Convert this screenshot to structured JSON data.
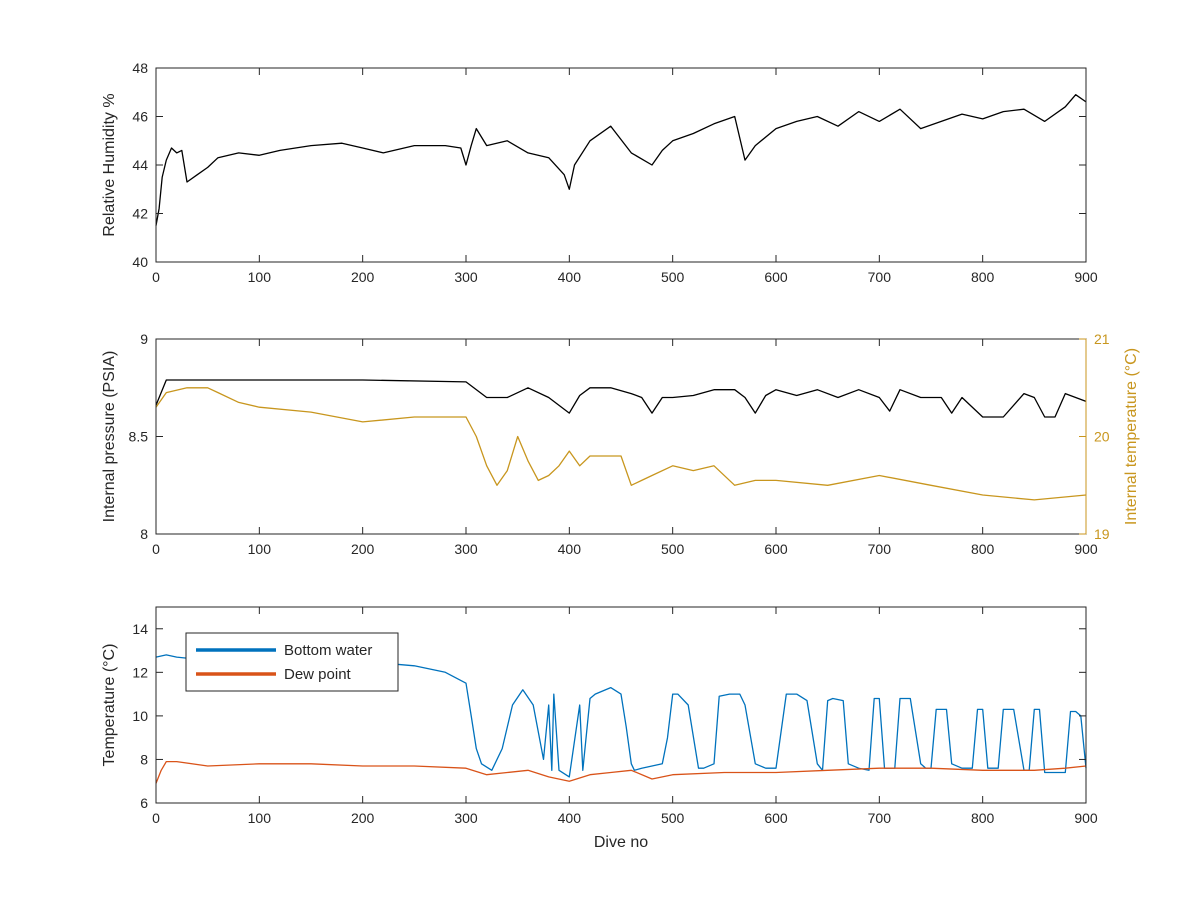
{
  "chart_data": [
    {
      "type": "line",
      "xlabel": "",
      "ylabel": "Relative Humidity %",
      "xlim": [
        0,
        900
      ],
      "ylim": [
        40,
        48
      ],
      "xticks": [
        "0",
        "100",
        "200",
        "300",
        "400",
        "500",
        "600",
        "700",
        "800",
        "900"
      ],
      "yticks": [
        "40",
        "42",
        "44",
        "46",
        "48"
      ],
      "color": "#000000",
      "series": [
        {
          "x": [
            0,
            3,
            6,
            10,
            15,
            20,
            25,
            30,
            40,
            50,
            60,
            80,
            100,
            120,
            150,
            180,
            200,
            220,
            250,
            280,
            295,
            300,
            305,
            310,
            320,
            340,
            360,
            380,
            395,
            400,
            405,
            420,
            440,
            460,
            480,
            490,
            500,
            520,
            540,
            560,
            570,
            580,
            600,
            620,
            640,
            660,
            680,
            700,
            720,
            740,
            760,
            780,
            800,
            820,
            840,
            860,
            880,
            890,
            900
          ],
          "values": [
            41.5,
            42.2,
            43.5,
            44.2,
            44.7,
            44.5,
            44.6,
            43.3,
            43.6,
            43.9,
            44.3,
            44.5,
            44.4,
            44.6,
            44.8,
            44.9,
            44.7,
            44.5,
            44.8,
            44.8,
            44.7,
            44.0,
            44.8,
            45.5,
            44.8,
            45.0,
            44.5,
            44.3,
            43.6,
            43.0,
            44.0,
            45.0,
            45.6,
            44.5,
            44.0,
            44.6,
            45.0,
            45.3,
            45.7,
            46.0,
            44.2,
            44.8,
            45.5,
            45.8,
            46.0,
            45.6,
            46.2,
            45.8,
            46.3,
            45.5,
            45.8,
            46.1,
            45.9,
            46.2,
            46.3,
            45.8,
            46.4,
            46.9,
            46.6
          ]
        }
      ]
    },
    {
      "type": "line",
      "xlabel": "",
      "ylabel": "Internal pressure (PSIA)",
      "ylabel_right": "Internal temperature (°C)",
      "xlim": [
        0,
        900
      ],
      "ylim": [
        8,
        9
      ],
      "ylim_right": [
        19,
        21
      ],
      "xticks": [
        "0",
        "100",
        "200",
        "300",
        "400",
        "500",
        "600",
        "700",
        "800",
        "900"
      ],
      "yticks": [
        "8",
        "8.5",
        "9"
      ],
      "yticks_right": [
        "19",
        "20",
        "21"
      ],
      "series": [
        {
          "axis": "left",
          "color": "#000000",
          "x": [
            0,
            10,
            100,
            200,
            300,
            320,
            340,
            360,
            380,
            400,
            410,
            420,
            440,
            460,
            470,
            480,
            490,
            500,
            520,
            540,
            560,
            570,
            580,
            590,
            600,
            620,
            640,
            660,
            680,
            700,
            710,
            720,
            740,
            760,
            770,
            780,
            800,
            820,
            840,
            850,
            860,
            870,
            880,
            900
          ],
          "values": [
            8.66,
            8.79,
            8.79,
            8.79,
            8.78,
            8.7,
            8.7,
            8.75,
            8.7,
            8.62,
            8.71,
            8.75,
            8.75,
            8.72,
            8.7,
            8.62,
            8.7,
            8.7,
            8.71,
            8.74,
            8.74,
            8.7,
            8.62,
            8.71,
            8.74,
            8.71,
            8.74,
            8.7,
            8.74,
            8.7,
            8.63,
            8.74,
            8.7,
            8.7,
            8.62,
            8.7,
            8.6,
            8.6,
            8.72,
            8.7,
            8.6,
            8.6,
            8.72,
            8.68
          ]
        },
        {
          "axis": "right",
          "color": "#C8961E",
          "x": [
            0,
            10,
            30,
            50,
            60,
            80,
            100,
            150,
            200,
            250,
            300,
            310,
            320,
            330,
            340,
            350,
            360,
            370,
            380,
            390,
            400,
            410,
            420,
            440,
            450,
            460,
            470,
            480,
            500,
            520,
            540,
            560,
            580,
            600,
            650,
            700,
            750,
            800,
            850,
            900
          ],
          "values": [
            20.3,
            20.45,
            20.5,
            20.5,
            20.45,
            20.35,
            20.3,
            20.25,
            20.15,
            20.2,
            20.2,
            20.0,
            19.7,
            19.5,
            19.65,
            20.0,
            19.75,
            19.55,
            19.6,
            19.7,
            19.85,
            19.7,
            19.8,
            19.8,
            19.8,
            19.5,
            19.55,
            19.6,
            19.7,
            19.65,
            19.7,
            19.5,
            19.55,
            19.55,
            19.5,
            19.6,
            19.5,
            19.4,
            19.35,
            19.4
          ]
        }
      ]
    },
    {
      "type": "line",
      "xlabel": "Dive no",
      "ylabel": "Temperature (°C)",
      "xlim": [
        0,
        900
      ],
      "ylim": [
        6,
        15
      ],
      "xticks": [
        "0",
        "100",
        "200",
        "300",
        "400",
        "500",
        "600",
        "700",
        "800",
        "900"
      ],
      "yticks": [
        "6",
        "8",
        "10",
        "12",
        "14"
      ],
      "legend": {
        "location": "top-left"
      },
      "series": [
        {
          "name": "Bottom water",
          "color": "#0072BD",
          "x": [
            0,
            10,
            20,
            60,
            150,
            200,
            250,
            280,
            300,
            305,
            310,
            315,
            325,
            335,
            345,
            355,
            365,
            375,
            380,
            383,
            385,
            390,
            400,
            410,
            413,
            420,
            425,
            440,
            450,
            455,
            460,
            463,
            470,
            480,
            490,
            495,
            500,
            505,
            515,
            525,
            530,
            540,
            545,
            555,
            565,
            570,
            580,
            590,
            600,
            610,
            620,
            630,
            640,
            645,
            650,
            655,
            665,
            670,
            680,
            690,
            695,
            700,
            705,
            715,
            720,
            730,
            740,
            745,
            750,
            755,
            765,
            770,
            780,
            790,
            795,
            800,
            805,
            815,
            820,
            830,
            840,
            845,
            850,
            855,
            860,
            870,
            880,
            885,
            890,
            895,
            900
          ],
          "values": [
            12.7,
            12.8,
            12.7,
            12.5,
            12.5,
            12.5,
            12.3,
            12.0,
            11.5,
            10.0,
            8.5,
            7.8,
            7.5,
            8.5,
            10.5,
            11.2,
            10.5,
            8.0,
            10.5,
            7.5,
            11.0,
            7.5,
            7.2,
            10.5,
            7.5,
            10.8,
            11.0,
            11.3,
            11.0,
            9.5,
            7.8,
            7.5,
            7.6,
            7.7,
            7.8,
            9.0,
            11.0,
            11.0,
            10.5,
            7.6,
            7.6,
            7.8,
            10.9,
            11.0,
            11.0,
            10.5,
            7.8,
            7.6,
            7.6,
            11.0,
            11.0,
            10.7,
            7.8,
            7.5,
            10.7,
            10.8,
            10.7,
            7.8,
            7.6,
            7.5,
            10.8,
            10.8,
            7.6,
            7.6,
            10.8,
            10.8,
            7.8,
            7.6,
            7.6,
            10.3,
            10.3,
            7.8,
            7.6,
            7.6,
            10.3,
            10.3,
            7.6,
            7.6,
            10.3,
            10.3,
            7.5,
            7.5,
            10.3,
            10.3,
            7.4,
            7.4,
            7.4,
            10.2,
            10.2,
            10.0,
            7.6
          ]
        },
        {
          "name": "Dew point",
          "color": "#D95319",
          "x": [
            0,
            5,
            10,
            20,
            50,
            100,
            150,
            200,
            250,
            300,
            320,
            340,
            360,
            380,
            400,
            420,
            440,
            460,
            480,
            500,
            550,
            600,
            650,
            700,
            750,
            800,
            850,
            880,
            900
          ],
          "values": [
            6.9,
            7.5,
            7.9,
            7.9,
            7.7,
            7.8,
            7.8,
            7.7,
            7.7,
            7.6,
            7.3,
            7.4,
            7.5,
            7.2,
            7.0,
            7.3,
            7.4,
            7.5,
            7.1,
            7.3,
            7.4,
            7.4,
            7.5,
            7.6,
            7.6,
            7.5,
            7.5,
            7.6,
            7.7
          ]
        }
      ]
    }
  ]
}
